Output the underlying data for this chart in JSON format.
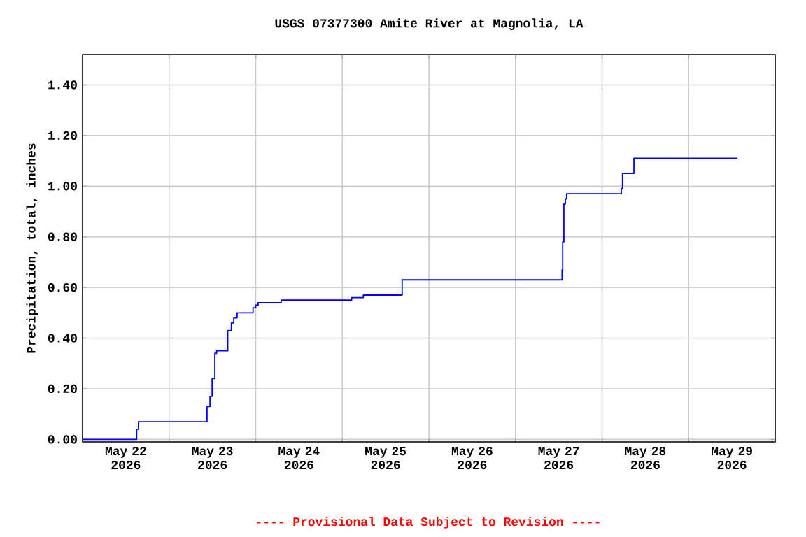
{
  "chart_data": {
    "type": "step",
    "title": "USGS 07377300 Amite River at Magnolia, LA",
    "ylabel": "Precipitation, total, inches",
    "annotations": [
      "---- Provisional Data Subject to Revision ----"
    ],
    "x": [
      "2026-05-22T00:00",
      "2026-05-22T15:00",
      "2026-05-22T15:30",
      "2026-05-23T10:30",
      "2026-05-23T11:20",
      "2026-05-23T11:55",
      "2026-05-23T12:40",
      "2026-05-23T13:10",
      "2026-05-23T16:15",
      "2026-05-23T17:15",
      "2026-05-23T17:55",
      "2026-05-23T18:50",
      "2026-05-23T23:15",
      "2026-05-24T00:00",
      "2026-05-24T00:40",
      "2026-05-24T07:05",
      "2026-05-25T02:35",
      "2026-05-25T05:50",
      "2026-05-25T16:35",
      "2026-05-27T12:55",
      "2026-05-27T13:05",
      "2026-05-27T13:25",
      "2026-05-27T13:50",
      "2026-05-27T14:10",
      "2026-05-28T05:20",
      "2026-05-28T05:40",
      "2026-05-28T08:50",
      "2026-05-29T13:30"
    ],
    "values": [
      0,
      0.04,
      0.07,
      0.13,
      0.17,
      0.24,
      0.34,
      0.35,
      0.43,
      0.46,
      0.48,
      0.5,
      0.52,
      0.53,
      0.54,
      0.55,
      0.56,
      0.57,
      0.63,
      0.67,
      0.78,
      0.93,
      0.95,
      0.97,
      0.99,
      1.05,
      1.11,
      1.11
    ],
    "color": "#0000ff",
    "xlim": [
      "2026-05-22T00:00",
      "2026-05-30T00:00"
    ],
    "xticks": [
      {
        "value": "2026-05-23T00:00",
        "label": null
      },
      {
        "value": "2026-05-24T00:00",
        "label": null
      },
      {
        "value": "2026-05-25T00:00",
        "label": null
      },
      {
        "value": "2026-05-26T00:00",
        "label": null
      },
      {
        "value": "2026-05-27T00:00",
        "label": null
      },
      {
        "value": "2026-05-28T00:00",
        "label": null
      },
      {
        "value": "2026-05-29T00:00",
        "label": null
      },
      {
        "value": "2026-05-22T12:00",
        "label": "May 22 2026"
      },
      {
        "value": "2026-05-23T12:00",
        "label": "May 23 2026"
      },
      {
        "value": "2026-05-24T12:00",
        "label": "May 24 2026"
      },
      {
        "value": "2026-05-25T12:00",
        "label": "May 25 2026"
      },
      {
        "value": "2026-05-26T12:00",
        "label": "May 26 2026"
      },
      {
        "value": "2026-05-27T12:00",
        "label": "May 27 2026"
      },
      {
        "value": "2026-05-28T12:00",
        "label": "May 28 2026"
      },
      {
        "value": "2026-05-29T12:00",
        "label": "May 29 2026"
      }
    ],
    "ylim": [
      -0.01,
      1.52
    ],
    "yticks": [
      {
        "value": 0,
        "label": "0.00"
      },
      {
        "value": 0.2,
        "label": "0.20"
      },
      {
        "value": 0.4,
        "label": "0.40"
      },
      {
        "value": 0.6,
        "label": "0.60"
      },
      {
        "value": 0.8,
        "label": "0.80"
      },
      {
        "value": 1.0,
        "label": "1.00"
      },
      {
        "value": 1.2,
        "label": "1.20"
      },
      {
        "value": 1.4,
        "label": "1.40"
      }
    ],
    "grid": true
  }
}
